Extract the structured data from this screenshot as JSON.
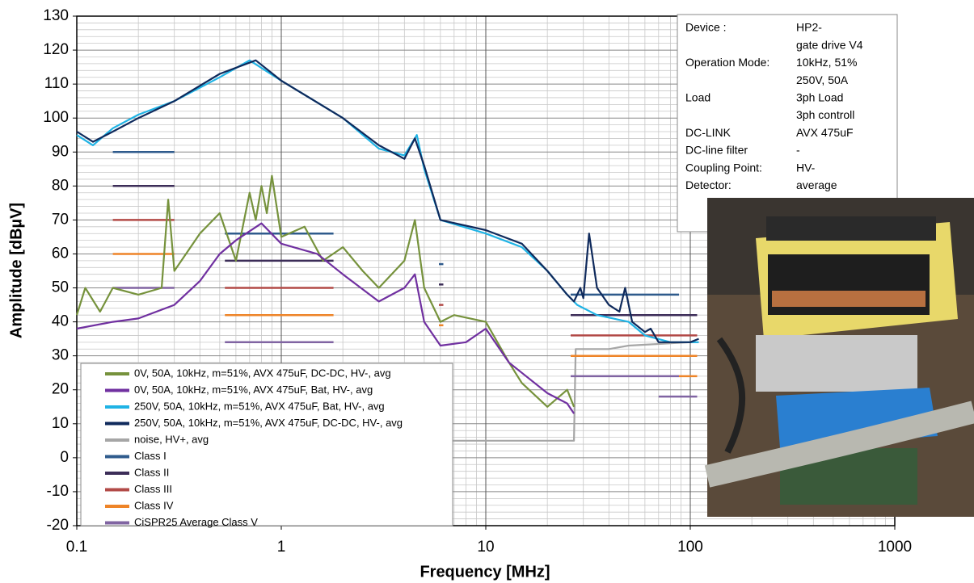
{
  "chart_data": {
    "type": "line",
    "x_label": "Frequency  [MHz]",
    "y_label": "Amplitude [dBµV]",
    "xscale": "log",
    "xlim": [
      0.1,
      1000
    ],
    "xticks": [
      0.1,
      1,
      10,
      100,
      1000
    ],
    "ylim": [
      -20,
      130
    ],
    "yticks": [
      -20,
      -10,
      0,
      10,
      20,
      30,
      40,
      50,
      60,
      70,
      80,
      90,
      100,
      110,
      120,
      130
    ],
    "grid": true,
    "legend": "lower left",
    "series": [
      {
        "name": "0V, 50A, 10kHz, m=51%, AVX 475uF, DC-DC,  HV-, avg",
        "color": "#76923c",
        "x": [
          0.1,
          0.11,
          0.13,
          0.15,
          0.2,
          0.26,
          0.28,
          0.3,
          0.4,
          0.5,
          0.6,
          0.7,
          0.75,
          0.8,
          0.85,
          0.9,
          1,
          1.3,
          1.6,
          2,
          2.5,
          3,
          4,
          4.5,
          5,
          6,
          7,
          10,
          13,
          15,
          20,
          25,
          27
        ],
        "values": [
          42,
          50,
          43,
          50,
          48,
          50,
          76,
          55,
          66,
          72,
          58,
          78,
          70,
          80,
          72,
          83,
          65,
          68,
          58,
          62,
          55,
          50,
          58,
          70,
          50,
          40,
          42,
          40,
          28,
          22,
          15,
          20,
          15
        ]
      },
      {
        "name": "0V, 50A, 10kHz, m=51%, AVX 475uF, Bat, HV-, avg",
        "color": "#7030a0",
        "x": [
          0.1,
          0.15,
          0.2,
          0.3,
          0.4,
          0.5,
          0.6,
          0.8,
          1,
          1.5,
          2,
          3,
          4,
          4.5,
          5,
          6,
          8,
          10,
          13,
          15,
          20,
          25,
          27
        ],
        "values": [
          38,
          40,
          41,
          45,
          52,
          60,
          64,
          69,
          63,
          60,
          54,
          46,
          50,
          54,
          40,
          33,
          34,
          38,
          28,
          25,
          19,
          16,
          13
        ]
      },
      {
        "name": "250V, 50A, 10kHz, m=51%, AVX 475uF, Bat, HV-, avg",
        "color": "#1fb3e5",
        "x": [
          0.1,
          0.12,
          0.15,
          0.2,
          0.3,
          0.5,
          0.7,
          1,
          2,
          3,
          4,
          4.6,
          5,
          6,
          10,
          15,
          20,
          25,
          28,
          35,
          50,
          60,
          80,
          110
        ],
        "values": [
          95,
          92,
          97,
          101,
          105,
          112,
          117,
          111,
          100,
          91,
          89,
          95,
          85,
          70,
          66,
          62,
          55,
          48,
          45,
          42,
          40,
          36,
          34,
          34
        ]
      },
      {
        "name": "250V, 50A, 10kHz, m=51%, AVX 475uF, DC-DC, HV-, avg",
        "color": "#0f2a5c",
        "x": [
          0.1,
          0.12,
          0.15,
          0.2,
          0.3,
          0.5,
          0.75,
          1,
          2,
          3,
          4,
          4.5,
          5,
          6,
          10,
          15,
          20,
          25,
          27,
          29,
          30,
          32,
          35,
          40,
          45,
          48,
          52,
          60,
          64,
          70,
          100,
          110
        ],
        "values": [
          96,
          93,
          96,
          100,
          105,
          113,
          117,
          111,
          100,
          92,
          88,
          94,
          86,
          70,
          67,
          63,
          55,
          48,
          46,
          50,
          47,
          66,
          50,
          45,
          43,
          50,
          40,
          37,
          38,
          34,
          34,
          35
        ]
      },
      {
        "name": "noise, HV+, avg",
        "color": "#a6a6a6",
        "x": [
          5,
          6,
          10,
          20,
          27,
          27.5,
          40,
          50,
          100,
          110
        ],
        "values": [
          6,
          5,
          5,
          5,
          5,
          32,
          32,
          33,
          34,
          34
        ]
      },
      {
        "name": "Class I",
        "color": "#2f5b8c",
        "x": [
          0.15,
          0.3,
          null,
          0.53,
          1.8,
          null,
          5.9,
          6.2,
          null,
          26,
          88
        ],
        "values": [
          90,
          90,
          null,
          66,
          66,
          null,
          57,
          57,
          null,
          48,
          48
        ]
      },
      {
        "name": "Class II",
        "color": "#3c2d58",
        "x": [
          0.15,
          0.3,
          null,
          0.53,
          1.8,
          null,
          5.9,
          6.2,
          null,
          26,
          108
        ],
        "values": [
          80,
          80,
          null,
          58,
          58,
          null,
          51,
          51,
          null,
          42,
          42
        ]
      },
      {
        "name": "Class III",
        "color": "#b24a47",
        "x": [
          0.15,
          0.3,
          null,
          0.53,
          1.8,
          null,
          5.9,
          6.2,
          null,
          26,
          108
        ],
        "values": [
          70,
          70,
          null,
          50,
          50,
          null,
          45,
          45,
          null,
          36,
          36
        ]
      },
      {
        "name": "Class IV",
        "color": "#ee8428",
        "x": [
          0.15,
          0.3,
          null,
          0.53,
          1.8,
          null,
          5.9,
          6.2,
          null,
          26,
          108,
          null,
          88,
          108
        ],
        "values": [
          60,
          60,
          null,
          42,
          42,
          null,
          39,
          39,
          null,
          30,
          30,
          null,
          24,
          24
        ]
      },
      {
        "name": "CiSPR25 Average Class V",
        "color": "#8064a2",
        "x": [
          0.15,
          0.3,
          null,
          0.53,
          1.8,
          null,
          26,
          88,
          null,
          70,
          108
        ],
        "values": [
          50,
          50,
          null,
          34,
          34,
          null,
          24,
          24,
          null,
          18,
          18
        ]
      }
    ],
    "info_box": [
      {
        "label": "Device :",
        "values": [
          "HP2-",
          "gate drive V4"
        ]
      },
      {
        "label": "Operation Mode:",
        "values": [
          "10kHz, 51%",
          "250V, 50A"
        ]
      },
      {
        "label": "Load",
        "values": [
          "3ph Load",
          "3ph controll"
        ]
      },
      {
        "label": "DC-LINK",
        "values": [
          "AVX 475uF"
        ]
      },
      {
        "label": "DC-line filter",
        "values": [
          "-"
        ]
      },
      {
        "label": "Coupling Point:",
        "values": [
          "HV-"
        ]
      },
      {
        "label": "Detector:",
        "values": [
          "average"
        ]
      }
    ]
  }
}
